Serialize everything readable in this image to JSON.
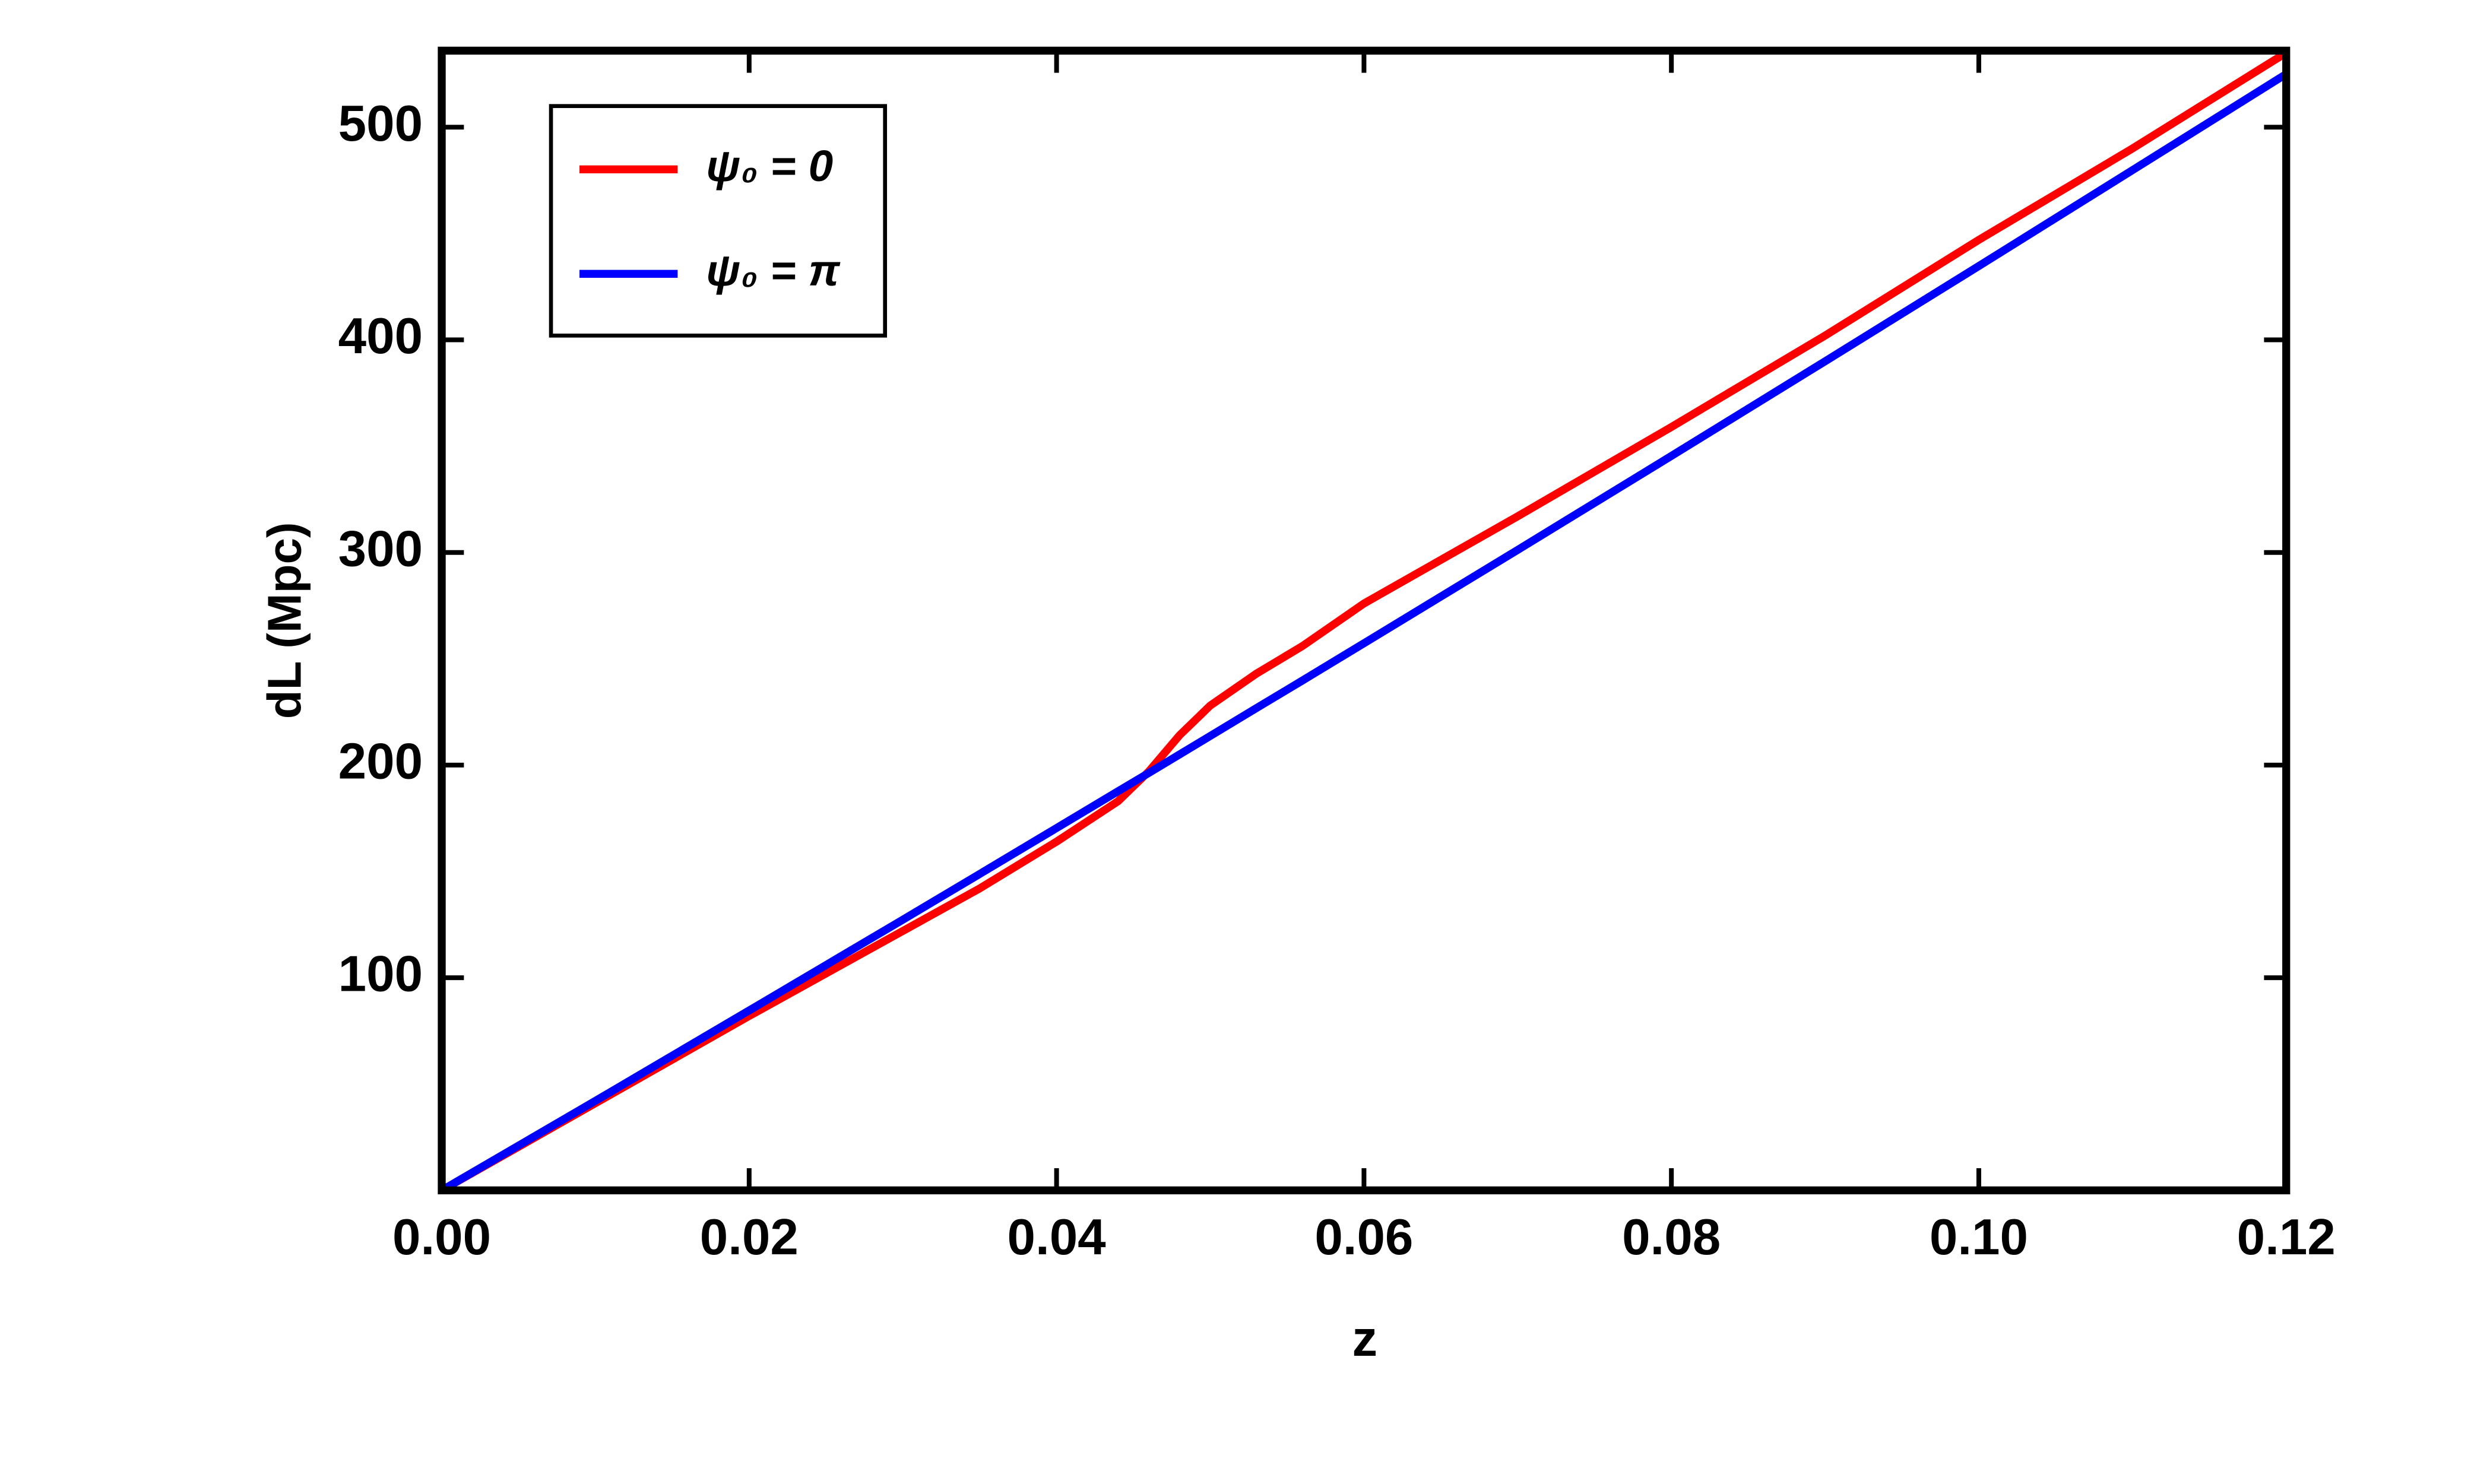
{
  "chart_data": {
    "type": "line",
    "xlabel": "z",
    "ylabel": "dL (Mpc)",
    "x": [
      0,
      0.01,
      0.02,
      0.03,
      0.035,
      0.04,
      0.044,
      0.046,
      0.048,
      0.05,
      0.053,
      0.056,
      0.06,
      0.07,
      0.08,
      0.09,
      0.1,
      0.11,
      0.12
    ],
    "series": [
      {
        "name": "ψ₀ = 0",
        "color": "#ff0000",
        "values": [
          0,
          41,
          82,
          122,
          142,
          164,
          183,
          197,
          214,
          228,
          243,
          256,
          276,
          317,
          359,
          402,
          447,
          490,
          535
        ]
      },
      {
        "name": "ψ₀ = π",
        "color": "#0000ff",
        "values": [
          0,
          42.1,
          84.6,
          127.3,
          148.8,
          170.4,
          187.7,
          196.3,
          205,
          213.7,
          226.8,
          239.8,
          257.3,
          301.2,
          345.4,
          389.9,
          434.7,
          479.8,
          525
        ]
      }
    ],
    "xlim": [
      0,
      0.12
    ],
    "ylim": [
      0,
      536
    ],
    "xticks": [
      {
        "value": 0,
        "label": "0.00"
      },
      {
        "value": 0.02,
        "label": "0.02"
      },
      {
        "value": 0.04,
        "label": "0.04"
      },
      {
        "value": 0.06,
        "label": "0.06"
      },
      {
        "value": 0.08,
        "label": "0.08"
      },
      {
        "value": 0.1,
        "label": "0.10"
      },
      {
        "value": 0.12,
        "label": "0.12"
      }
    ],
    "yticks": [
      100,
      200,
      300,
      400,
      500
    ],
    "legend": "upper left"
  }
}
